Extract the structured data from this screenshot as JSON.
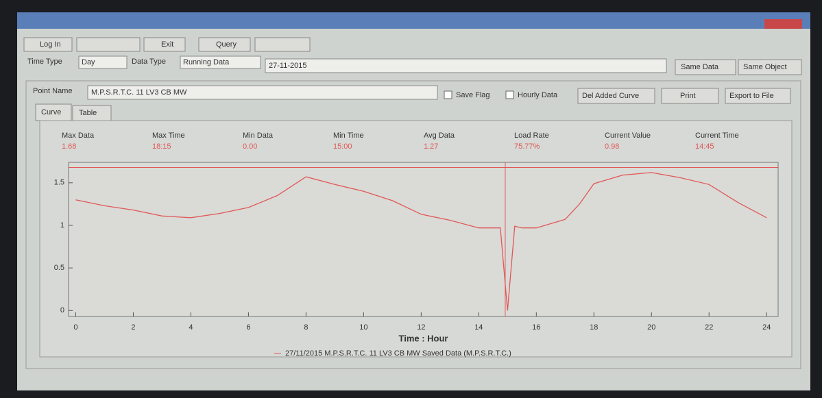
{
  "toolbar": {
    "log_in": "Log In",
    "exit": "Exit",
    "query": "Query"
  },
  "filters": {
    "time_type_label": "Time Type",
    "time_type": "Day",
    "data_type_label": "Data Type",
    "data_type": "Running Data",
    "date": "27-11-2015",
    "same_data": "Same Data",
    "same_object": "Same Object"
  },
  "point": {
    "label": "Point Name",
    "value": "M.P.S.R.T.C. 11 LV3 CB MW",
    "save_flag": "Save Flag",
    "hourly_data": "Hourly Data",
    "del_curve": "Del Added Curve",
    "print": "Print",
    "export": "Export to File"
  },
  "tabs": [
    "Curve",
    "Table"
  ],
  "stats": [
    {
      "label": "Max Data",
      "value": "1.68"
    },
    {
      "label": "Max Time",
      "value": "18:15"
    },
    {
      "label": "Min Data",
      "value": "0.00"
    },
    {
      "label": "Min Time",
      "value": "15:00"
    },
    {
      "label": "Avg Data",
      "value": "1.27"
    },
    {
      "label": "Load Rate",
      "value": "75.77%"
    },
    {
      "label": "Current Value",
      "value": "0.98"
    },
    {
      "label": "Current Time",
      "value": "14:45"
    }
  ],
  "chart_data": {
    "type": "line",
    "xlabel": "Time : Hour",
    "x": [
      0,
      1,
      2,
      3,
      4,
      5,
      6,
      7,
      8,
      9,
      10,
      11,
      12,
      13,
      14,
      14.5,
      14.75,
      15,
      15.25,
      15.5,
      16,
      17,
      17.5,
      18,
      19,
      20,
      21,
      22,
      23,
      24
    ],
    "series": [
      {
        "name": "27/11/2015 M.P.S.R.T.C. 11 LV3 CB MW Saved Data (M.P.S.R.T.C.)",
        "color": "#e05858",
        "values": [
          1.3,
          1.23,
          1.18,
          1.11,
          1.09,
          1.14,
          1.21,
          1.35,
          1.57,
          1.48,
          1.4,
          1.29,
          1.13,
          1.06,
          0.97,
          0.97,
          0.97,
          0,
          0.99,
          0.97,
          0.97,
          1.07,
          1.25,
          1.49,
          1.59,
          1.62,
          1.56,
          1.48,
          1.27,
          1.09
        ]
      }
    ],
    "xlim": [
      -0.25,
      24.4
    ],
    "xticks": [
      0,
      2,
      4,
      6,
      8,
      10,
      12,
      14,
      16,
      18,
      20,
      22,
      24
    ],
    "ylim": [
      -0.07,
      1.74
    ],
    "yticks": [
      0,
      0.5,
      1,
      1.5
    ],
    "max_line": 1.68,
    "marker_x": 14.92
  }
}
